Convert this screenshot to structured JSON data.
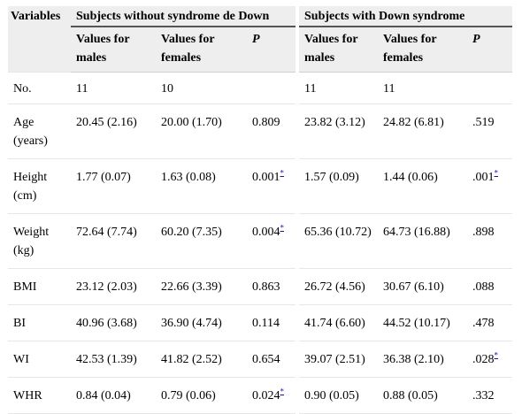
{
  "header": {
    "variables": "Variables",
    "group_without": "Subjects without syndrome de Down",
    "group_with": "Subjects with Down syndrome",
    "males": "Values for males",
    "females": "Values for females",
    "p": "P"
  },
  "footnote_mark": "*",
  "rows": [
    {
      "label": "No.",
      "wo_m": "11",
      "wo_f": "10",
      "wo_p": "",
      "wo_p_note": false,
      "w_m": "11",
      "w_f": "11",
      "w_p": "",
      "w_p_note": false
    },
    {
      "label": "Age (years)",
      "wo_m": "20.45 (2.16)",
      "wo_f": "20.00 (1.70)",
      "wo_p": "0.809",
      "wo_p_note": false,
      "w_m": "23.82 (3.12)",
      "w_f": "24.82 (6.81)",
      "w_p": ".519",
      "w_p_note": false
    },
    {
      "label": "Height (cm)",
      "wo_m": "1.77 (0.07)",
      "wo_f": "1.63 (0.08)",
      "wo_p": "0.001",
      "wo_p_note": true,
      "w_m": "1.57 (0.09)",
      "w_f": "1.44 (0.06)",
      "w_p": ".001",
      "w_p_note": true
    },
    {
      "label": "Weight (kg)",
      "wo_m": "72.64 (7.74)",
      "wo_f": "60.20 (7.35)",
      "wo_p": "0.004",
      "wo_p_note": true,
      "w_m": "65.36 (10.72)",
      "w_f": "64.73 (16.88)",
      "w_p": ".898",
      "w_p_note": false
    },
    {
      "label": "BMI",
      "wo_m": "23.12 (2.03)",
      "wo_f": "22.66 (3.39)",
      "wo_p": "0.863",
      "wo_p_note": false,
      "w_m": "26.72 (4.56)",
      "w_f": "30.67 (6.10)",
      "w_p": ".088",
      "w_p_note": false
    },
    {
      "label": "BI",
      "wo_m": "40.96 (3.68)",
      "wo_f": "36.90 (4.74)",
      "wo_p": "0.114",
      "wo_p_note": false,
      "w_m": "41.74 (6.60)",
      "w_f": "44.52 (10.17)",
      "w_p": ".478",
      "w_p_note": false
    },
    {
      "label": "WI",
      "wo_m": "42.53 (1.39)",
      "wo_f": "41.82 (2.52)",
      "wo_p": "0.654",
      "wo_p_note": false,
      "w_m": "39.07 (2.51)",
      "w_f": "36.38 (2.10)",
      "w_p": ".028",
      "w_p_note": true
    },
    {
      "label": "WHR",
      "wo_m": "0.84 (0.04)",
      "wo_f": "0.79 (0.06)",
      "wo_p": "0.024",
      "wo_p_note": true,
      "w_m": "0.90 (0.05)",
      "w_f": "0.88 (0.05)",
      "w_p": ".332",
      "w_p_note": false
    }
  ]
}
